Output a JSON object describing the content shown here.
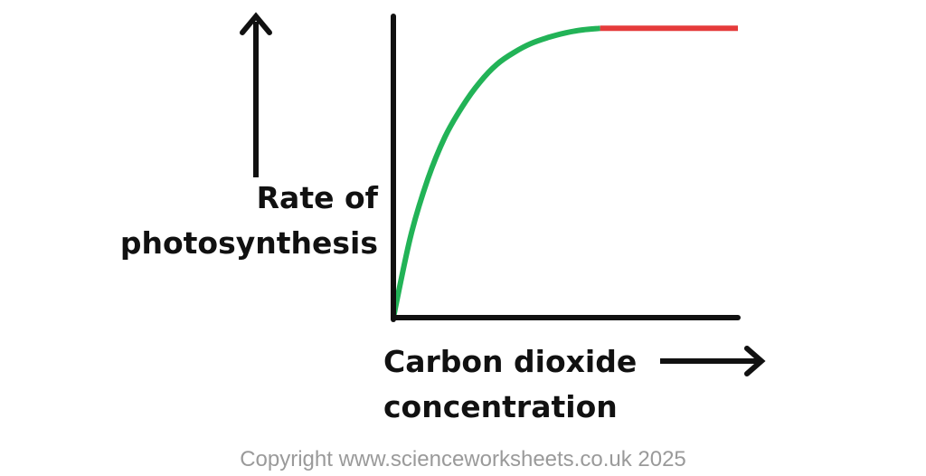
{
  "chart_data": {
    "type": "line",
    "title": "",
    "ylabel_lines": [
      "Rate of",
      "photosynthesis"
    ],
    "xlabel_lines": [
      "Carbon dioxide",
      "concentration"
    ],
    "xlim": [
      0,
      100
    ],
    "ylim": [
      0,
      100
    ],
    "grid": false,
    "legend": "none",
    "series": [
      {
        "color": "#22b357",
        "x": [
          0,
          5,
          10,
          15,
          20,
          25,
          30,
          35,
          40,
          45,
          50,
          55,
          60
        ],
        "y": [
          0,
          27,
          46,
          60,
          70,
          78,
          84,
          88,
          91,
          93,
          94.5,
          95.5,
          96
        ]
      },
      {
        "color": "#e53b3b",
        "x": [
          60,
          100
        ],
        "y": [
          96,
          96
        ]
      }
    ],
    "axis_color": "#111111"
  },
  "footer": {
    "copyright": "Copyright www.scienceworksheets.co.uk 2025"
  }
}
